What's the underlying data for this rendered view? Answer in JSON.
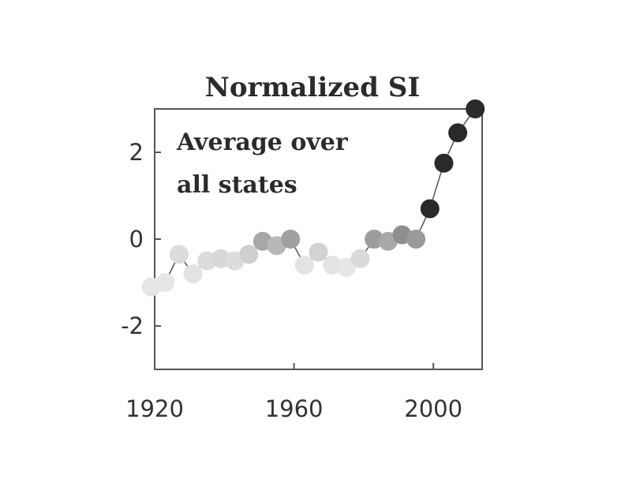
{
  "chart_data": {
    "type": "scatter",
    "title": "Normalized SI",
    "annotation": [
      "Average over",
      "all states"
    ],
    "xlabel": "",
    "ylabel": "",
    "xlim": [
      1920,
      2014
    ],
    "ylim": [
      -3,
      3
    ],
    "xticks": [
      1920,
      1960,
      2000
    ],
    "yticks": [
      2,
      0,
      -2
    ],
    "grid": false,
    "connected": true,
    "points": [
      {
        "x": 1919,
        "y": -1.1,
        "color": "#e6e6e6"
      },
      {
        "x": 1923,
        "y": -1.0,
        "color": "#e6e6e6"
      },
      {
        "x": 1927,
        "y": -0.35,
        "color": "#dcdcdc"
      },
      {
        "x": 1931,
        "y": -0.8,
        "color": "#e3e3e3"
      },
      {
        "x": 1935,
        "y": -0.5,
        "color": "#dcdcdc"
      },
      {
        "x": 1939,
        "y": -0.45,
        "color": "#d8d8d8"
      },
      {
        "x": 1943,
        "y": -0.5,
        "color": "#dcdcdc"
      },
      {
        "x": 1947,
        "y": -0.35,
        "color": "#cfcfcf"
      },
      {
        "x": 1951,
        "y": -0.05,
        "color": "#a8a8a8"
      },
      {
        "x": 1955,
        "y": -0.15,
        "color": "#b8b8b8"
      },
      {
        "x": 1959,
        "y": 0.0,
        "color": "#a0a0a0"
      },
      {
        "x": 1963,
        "y": -0.6,
        "color": "#e3e3e3"
      },
      {
        "x": 1967,
        "y": -0.3,
        "color": "#d2d2d2"
      },
      {
        "x": 1971,
        "y": -0.6,
        "color": "#e3e3e3"
      },
      {
        "x": 1975,
        "y": -0.65,
        "color": "#e6e6e6"
      },
      {
        "x": 1979,
        "y": -0.45,
        "color": "#dadada"
      },
      {
        "x": 1983,
        "y": 0.0,
        "color": "#9c9c9c"
      },
      {
        "x": 1987,
        "y": -0.05,
        "color": "#a8a8a8"
      },
      {
        "x": 1991,
        "y": 0.1,
        "color": "#8e8e8e"
      },
      {
        "x": 1995,
        "y": 0.0,
        "color": "#9a9a9a"
      },
      {
        "x": 1999,
        "y": 0.7,
        "color": "#2a2a2a"
      },
      {
        "x": 2003,
        "y": 1.75,
        "color": "#2a2a2a"
      },
      {
        "x": 2007,
        "y": 2.45,
        "color": "#2a2a2a"
      },
      {
        "x": 2012,
        "y": 3.0,
        "color": "#2a2a2a"
      }
    ]
  }
}
